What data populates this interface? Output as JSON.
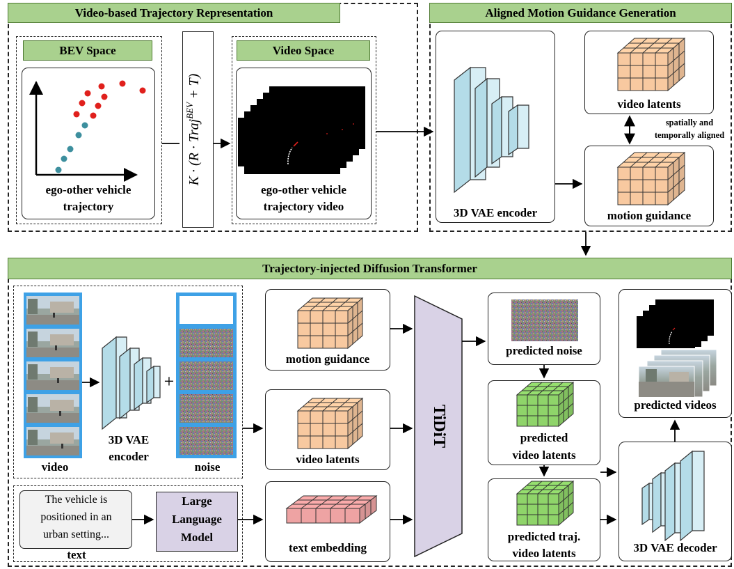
{
  "sections": {
    "top_left_title": "Video-based Trajectory Representation",
    "top_right_title": "Aligned Motion Guidance Generation",
    "bottom_title": "Trajectory-injected Diffusion Transformer"
  },
  "bev": {
    "title": "BEV Space",
    "caption_line1": "ego-other vehicle",
    "caption_line2": "trajectory"
  },
  "video_space": {
    "title": "Video Space",
    "caption_line1": "ego-other vehicle",
    "caption_line2": "trajectory video"
  },
  "transform_formula": "K · (R · Traj^BEV + T)",
  "motion_gen": {
    "encoder_label": "3D VAE encoder",
    "video_latents": "video latents",
    "motion_guidance": "motion  guidance",
    "alignment_line1": "spatially and",
    "alignment_line2": "temporally aligned"
  },
  "tidit": {
    "video_label": "video",
    "encoder_line1": "3D VAE",
    "encoder_line2": "encoder",
    "noise_label": "noise",
    "plus": "+",
    "motion_guidance": "motion  guidance",
    "video_latents": "video latents",
    "text_input": "The vehicle is positioned in an urban setting...",
    "text_input_line1": "The   vehicle   is",
    "text_input_line2": "positioned in an",
    "text_input_line3": "urban setting...",
    "text_label": "text",
    "llm_line1": "Large",
    "llm_line2": "Language",
    "llm_line3": "Model",
    "text_embedding": "text embedding",
    "transformer": "TiDiT",
    "predicted_noise": "predicted noise",
    "pred_latents_line1": "predicted",
    "pred_latents_line2": "video latents",
    "pred_traj_line1": "predicted traj.",
    "pred_traj_line2": "video latents",
    "decoder_label": "3D VAE decoder",
    "predicted_videos": "predicted videos"
  },
  "colors": {
    "header_green": "#a9d18e",
    "encoder_blue": "#b4dce8",
    "motion_orange": "#f8c9a0",
    "latent_green": "#8fd46a",
    "text_pink": "#eea3a3",
    "llm_purple": "#d9d2e6",
    "frame_blue": "#3ea1e6",
    "ego_teal": "#3d8f9e",
    "other_red": "#e0201c"
  }
}
